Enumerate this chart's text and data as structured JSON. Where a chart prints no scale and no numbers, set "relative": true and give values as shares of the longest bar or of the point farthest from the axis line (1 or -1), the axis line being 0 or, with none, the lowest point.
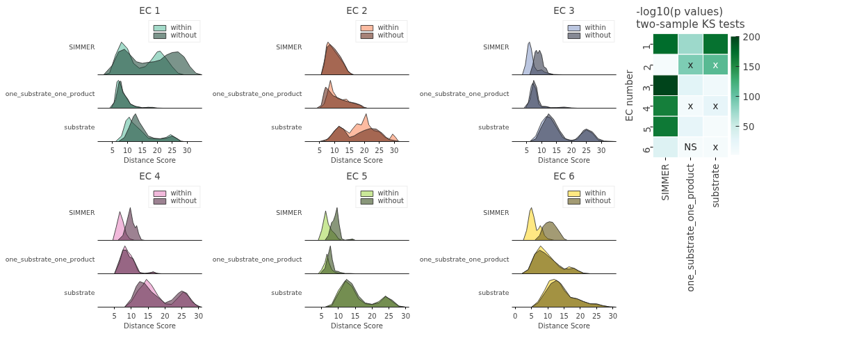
{
  "chart_data": [
    {
      "type": "area",
      "relative": true,
      "title": "EC 1",
      "ylabel": "SIMMER",
      "xlim": [
        0,
        35
      ],
      "xticks": [
        5,
        10,
        15,
        20,
        25,
        30
      ],
      "tick_labels": false,
      "legend": "top right",
      "series": [
        {
          "name": "within",
          "color": "#66c2a5",
          "x": [
            2,
            4,
            6,
            8,
            10,
            12,
            14,
            16,
            18,
            20,
            21,
            23,
            25,
            27,
            29,
            35
          ],
          "values": [
            0,
            0.05,
            0.6,
            1,
            0.8,
            0.35,
            0.2,
            0.25,
            0.45,
            0.7,
            0.72,
            0.5,
            0.25,
            0.05,
            0,
            0
          ]
        },
        {
          "name": "without",
          "color": "#234d3d",
          "x": [
            2,
            5,
            7,
            9,
            11,
            13,
            15,
            17,
            19,
            21,
            23,
            25,
            27,
            29,
            31,
            33,
            35
          ],
          "values": [
            0,
            0.3,
            0.7,
            0.78,
            0.6,
            0.4,
            0.35,
            0.38,
            0.4,
            0.45,
            0.6,
            0.68,
            0.7,
            0.55,
            0.25,
            0.05,
            0
          ]
        }
      ]
    },
    {
      "type": "area",
      "relative": true,
      "ylabel": "one_substrate_one_product",
      "xlim": [
        0,
        35
      ],
      "tick_labels": false,
      "series": [
        {
          "color": "#66c2a5",
          "x": [
            4,
            5.5,
            6.5,
            7,
            7.5,
            8.5,
            9.5,
            11,
            13,
            15,
            17,
            19,
            22,
            35
          ],
          "values": [
            0,
            0.2,
            0.95,
            1,
            0.9,
            0.6,
            0.4,
            0.15,
            0.05,
            0.02,
            0.03,
            0.01,
            0,
            0
          ]
        },
        {
          "color": "#234d3d",
          "x": [
            4.5,
            6,
            7.2,
            7.8,
            8.5,
            10,
            11,
            12.5,
            14,
            15,
            17,
            18.5,
            20,
            35
          ],
          "values": [
            0,
            0.3,
            0.95,
            0.97,
            0.55,
            0.35,
            0.15,
            0.07,
            0.04,
            0.01,
            0.03,
            0.03,
            0,
            0
          ]
        }
      ]
    },
    {
      "type": "area",
      "relative": true,
      "ylabel": "substrate",
      "xlabel": "Distance Score",
      "xlim": [
        0,
        35
      ],
      "xticks": [
        5,
        10,
        15,
        20,
        25,
        30
      ],
      "tick_labels": "x",
      "series": [
        {
          "color": "#66c2a5",
          "x": [
            6,
            8,
            9.5,
            10.6,
            11.5,
            13,
            15,
            17,
            19,
            21,
            23,
            24.5,
            26,
            28,
            35
          ],
          "values": [
            0,
            0.2,
            0.75,
            0.88,
            0.7,
            0.55,
            0.35,
            0.12,
            0.1,
            0.1,
            0.15,
            0.25,
            0.15,
            0,
            0
          ]
        },
        {
          "color": "#234d3d",
          "x": [
            7,
            9,
            10.5,
            12,
            12.7,
            14,
            15.5,
            17,
            19,
            21,
            23,
            25,
            26.5,
            28,
            29,
            35
          ],
          "values": [
            0,
            0.15,
            0.5,
            0.9,
            1,
            0.7,
            0.45,
            0.2,
            0.12,
            0.1,
            0.12,
            0.2,
            0.12,
            0.02,
            0,
            0
          ]
        }
      ]
    },
    {
      "type": "area",
      "relative": true,
      "title": "EC 2",
      "ylabel": "SIMMER",
      "xlim": [
        0,
        35
      ],
      "tick_labels": false,
      "legend": "top right",
      "series": [
        {
          "name": "within",
          "color": "#fc8d62",
          "x": [
            5.5,
            6.5,
            7.3,
            7.8,
            9,
            11,
            13,
            14.5,
            15.5,
            16,
            35
          ],
          "values": [
            0,
            0.3,
            0.9,
            1,
            0.85,
            0.6,
            0.35,
            0.1,
            0.03,
            0,
            0
          ]
        },
        {
          "name": "without",
          "color": "#6a2f1e",
          "x": [
            5.5,
            6.5,
            7.5,
            8.5,
            10,
            12,
            13.5,
            14.5,
            15.5,
            16.5,
            35
          ],
          "values": [
            0,
            0.4,
            0.85,
            0.93,
            0.8,
            0.55,
            0.3,
            0.12,
            0.04,
            0,
            0
          ]
        }
      ]
    },
    {
      "type": "area",
      "relative": true,
      "ylabel": "one_substrate_one_product",
      "xlim": [
        0,
        35
      ],
      "tick_labels": false,
      "series": [
        {
          "color": "#fc8d62",
          "x": [
            5,
            6.5,
            7.5,
            8.6,
            9.5,
            11,
            12.5,
            14,
            15,
            17,
            18.5,
            19.5,
            21,
            35
          ],
          "values": [
            0,
            0.15,
            0.5,
            1,
            0.6,
            0.35,
            0.3,
            0.32,
            0.22,
            0.18,
            0.12,
            0.02,
            0,
            0
          ]
        },
        {
          "color": "#6a2f1e",
          "x": [
            4,
            5.5,
            6.5,
            7,
            8,
            9.5,
            11,
            13,
            15,
            17,
            19,
            20,
            21,
            35
          ],
          "values": [
            0,
            0.1,
            0.6,
            0.76,
            0.65,
            0.45,
            0.38,
            0.28,
            0.22,
            0.16,
            0.1,
            0.03,
            0,
            0
          ]
        }
      ]
    },
    {
      "type": "area",
      "relative": true,
      "ylabel": "substrate",
      "xlabel": "Distance Score",
      "xlim": [
        0,
        35
      ],
      "xticks": [
        5,
        10,
        15,
        20,
        25,
        30
      ],
      "tick_labels": "x",
      "series": [
        {
          "color": "#fc8d62",
          "x": [
            5,
            8,
            10,
            11.5,
            13,
            15,
            16,
            17.5,
            19,
            20.6,
            21.5,
            23,
            25,
            27,
            28.5,
            29.5,
            30.5,
            31.5,
            35
          ],
          "values": [
            0,
            0.1,
            0.4,
            0.55,
            0.45,
            0.3,
            0.45,
            0.64,
            0.6,
            1,
            0.6,
            0.4,
            0.35,
            0.15,
            0.1,
            0.27,
            0.15,
            0,
            0
          ]
        },
        {
          "color": "#6a2f1e",
          "x": [
            5,
            7,
            9,
            11.4,
            13,
            15,
            16.5,
            18,
            20,
            22,
            24,
            26,
            28,
            30,
            32,
            35
          ],
          "values": [
            0,
            0.03,
            0.25,
            0.55,
            0.45,
            0.15,
            0.2,
            0.3,
            0.4,
            0.47,
            0.45,
            0.3,
            0.08,
            0.04,
            0,
            0
          ]
        }
      ]
    },
    {
      "type": "area",
      "relative": true,
      "title": "EC 3",
      "ylabel": "SIMMER",
      "xlim": [
        0,
        35
      ],
      "tick_labels": false,
      "legend": "top right",
      "series": [
        {
          "name": "within",
          "color": "#8da0cb",
          "x": [
            3.5,
            4.5,
            5.5,
            5.9,
            6.5,
            7.5,
            8.5,
            10,
            11,
            12,
            14,
            35
          ],
          "values": [
            0,
            0.3,
            0.95,
            1,
            0.8,
            0.25,
            0.12,
            0.15,
            0.08,
            0.05,
            0,
            0
          ]
        },
        {
          "name": "without",
          "color": "#353b4d",
          "x": [
            6,
            7,
            7.8,
            8.2,
            8.7,
            9.3,
            10,
            10.7,
            11.5,
            12.2,
            14,
            17,
            35
          ],
          "values": [
            0,
            0.3,
            0.7,
            0.75,
            0.65,
            0.75,
            0.6,
            0.25,
            0.2,
            0.05,
            0.01,
            0,
            0
          ]
        }
      ]
    },
    {
      "type": "area",
      "relative": true,
      "ylabel": "one_substrate_one_product",
      "xlim": [
        0,
        35
      ],
      "tick_labels": false,
      "series": [
        {
          "color": "#8da0cb",
          "x": [
            4,
            5.5,
            6.5,
            7,
            8,
            9,
            10,
            11.5,
            13,
            17,
            20,
            35
          ],
          "values": [
            0,
            0.2,
            0.8,
            0.9,
            0.7,
            0.15,
            0.04,
            0.05,
            0.01,
            0.02,
            0,
            0
          ]
        },
        {
          "color": "#353b4d",
          "x": [
            4.5,
            6,
            7.3,
            8.3,
            9,
            10,
            11.5,
            13,
            15,
            17.5,
            20,
            22,
            35
          ],
          "values": [
            0,
            0.3,
            1,
            0.75,
            0.3,
            0.07,
            0.06,
            0.02,
            0.02,
            0.04,
            0.01,
            0,
            0
          ]
        }
      ]
    },
    {
      "type": "area",
      "relative": true,
      "ylabel": "substrate",
      "xlabel": "Distance Score",
      "xlim": [
        0,
        35
      ],
      "xticks": [
        5,
        10,
        15,
        20,
        25,
        30
      ],
      "tick_labels": "x",
      "series": [
        {
          "color": "#8da0cb",
          "x": [
            6,
            8,
            10,
            11.5,
            13,
            15,
            17,
            19,
            21,
            23,
            25,
            27,
            29,
            31,
            35
          ],
          "values": [
            0,
            0.2,
            0.7,
            0.9,
            0.85,
            0.5,
            0.15,
            0.05,
            0.05,
            0.25,
            0.42,
            0.3,
            0.05,
            0,
            0
          ]
        },
        {
          "color": "#353b4d",
          "x": [
            6,
            8,
            10,
            12.3,
            14,
            16,
            18,
            20,
            22,
            24,
            25,
            27,
            29,
            31,
            35
          ],
          "values": [
            0,
            0.1,
            0.55,
            1,
            0.8,
            0.4,
            0.1,
            0.04,
            0.1,
            0.4,
            0.45,
            0.35,
            0.1,
            0.02,
            0
          ]
        }
      ]
    },
    {
      "type": "area",
      "relative": true,
      "title": "EC 4",
      "ylabel": "SIMMER",
      "xlim": [
        0,
        31
      ],
      "tick_labels": false,
      "legend": "top right",
      "series": [
        {
          "name": "within",
          "color": "#e78ac3",
          "x": [
            4.5,
            5.5,
            6.6,
            7.5,
            8.5,
            9.5,
            11,
            31
          ],
          "values": [
            0,
            0.4,
            0.88,
            0.6,
            0.2,
            0.05,
            0,
            0
          ]
        },
        {
          "name": "without",
          "color": "#5b2e4a",
          "x": [
            6,
            7.5,
            8.5,
            9.7,
            10.5,
            11.2,
            11.6,
            12.2,
            13,
            14,
            31
          ],
          "values": [
            0,
            0.15,
            0.5,
            1,
            0.55,
            0.38,
            0.45,
            0.2,
            0.02,
            0,
            0
          ]
        }
      ]
    },
    {
      "type": "area",
      "relative": true,
      "ylabel": "one_substrate_one_product",
      "xlim": [
        0,
        31
      ],
      "tick_labels": false,
      "series": [
        {
          "color": "#e78ac3",
          "x": [
            5,
            6.5,
            7.5,
            8.1,
            9,
            10,
            11,
            12,
            13,
            15.5,
            16.5,
            17.5,
            19,
            31
          ],
          "values": [
            0,
            0.4,
            0.85,
            1,
            0.8,
            0.65,
            0.4,
            0.1,
            0.01,
            0.02,
            0.07,
            0.02,
            0,
            0
          ]
        },
        {
          "color": "#5b2e4a",
          "x": [
            5,
            6.5,
            7.5,
            8.5,
            9.5,
            10.5,
            11.5,
            12.5,
            14,
            16.5,
            18,
            31
          ],
          "values": [
            0,
            0.5,
            0.85,
            0.85,
            0.6,
            0.55,
            0.3,
            0.05,
            0.01,
            0.06,
            0,
            0
          ]
        }
      ]
    },
    {
      "type": "area",
      "relative": true,
      "ylabel": "substrate",
      "xlabel": "Distance Score",
      "xlim": [
        0,
        31
      ],
      "xticks": [
        5,
        10,
        15,
        20,
        25,
        30
      ],
      "tick_labels": "x",
      "series": [
        {
          "color": "#e78ac3",
          "x": [
            8,
            10,
            12,
            13.5,
            14.5,
            16,
            18,
            20,
            22,
            24,
            25.5,
            27,
            29,
            30.5,
            31
          ],
          "values": [
            0,
            0.2,
            0.6,
            0.8,
            1,
            0.8,
            0.4,
            0.12,
            0.1,
            0.35,
            0.55,
            0.4,
            0.1,
            0.01,
            0
          ]
        },
        {
          "color": "#5b2e4a",
          "x": [
            8,
            10,
            11.5,
            12.5,
            14,
            16,
            18,
            20,
            22,
            24,
            25,
            26.5,
            28,
            30,
            31
          ],
          "values": [
            0,
            0.3,
            0.75,
            0.92,
            0.85,
            0.55,
            0.35,
            0.15,
            0.25,
            0.5,
            0.58,
            0.5,
            0.2,
            0.02,
            0
          ]
        }
      ]
    },
    {
      "type": "area",
      "relative": true,
      "title": "EC 5",
      "ylabel": "SIMMER",
      "xlim": [
        0,
        31
      ],
      "tick_labels": false,
      "legend": "top right",
      "series": [
        {
          "name": "within",
          "color": "#a6d854",
          "x": [
            4,
            5,
            6.2,
            7,
            8,
            9,
            10,
            11,
            14,
            15,
            31
          ],
          "values": [
            0,
            0.3,
            0.9,
            0.5,
            0.3,
            0.2,
            0.05,
            0,
            0.02,
            0,
            0
          ]
        },
        {
          "name": "without",
          "color": "#3b5121",
          "x": [
            6,
            7,
            8,
            8.5,
            9,
            9.6,
            10.2,
            11,
            12,
            14.2,
            15,
            31
          ],
          "values": [
            0,
            0.15,
            0.55,
            0.6,
            0.75,
            1,
            0.5,
            0.05,
            0,
            0.04,
            0,
            0
          ]
        }
      ]
    },
    {
      "type": "area",
      "relative": true,
      "ylabel": "one_substrate_one_product",
      "xlim": [
        0,
        31
      ],
      "tick_labels": false,
      "series": [
        {
          "color": "#a6d854",
          "x": [
            4,
            5,
            6,
            6.6,
            7.2,
            8,
            9,
            10,
            12,
            31
          ],
          "values": [
            0,
            0.15,
            0.4,
            0.71,
            0.4,
            0.15,
            0.05,
            0.02,
            0,
            0
          ]
        },
        {
          "color": "#3b5121",
          "x": [
            4.5,
            6,
            7,
            7.6,
            8.2,
            9,
            10,
            10.5,
            12,
            13.5,
            15,
            31
          ],
          "values": [
            0,
            0.2,
            0.7,
            1,
            0.5,
            0.1,
            0.08,
            0.05,
            0.01,
            0.01,
            0,
            0
          ]
        }
      ]
    },
    {
      "type": "area",
      "relative": true,
      "ylabel": "substrate",
      "xlabel": "Distance Score",
      "xlim": [
        0,
        31
      ],
      "xticks": [
        5,
        10,
        15,
        20,
        25,
        30
      ],
      "tick_labels": "x",
      "series": [
        {
          "color": "#a6d854",
          "x": [
            6,
            8,
            10,
            12,
            14,
            16,
            18,
            20,
            22,
            24,
            26,
            28,
            30,
            31
          ],
          "values": [
            0,
            0.1,
            0.6,
            0.95,
            0.75,
            0.3,
            0.12,
            0.1,
            0.2,
            0.4,
            0.2,
            0.03,
            0,
            0
          ]
        },
        {
          "color": "#3b5121",
          "x": [
            6,
            8,
            10,
            12.4,
            14,
            16,
            18,
            20,
            22,
            24,
            26,
            28,
            30,
            31
          ],
          "values": [
            0,
            0.05,
            0.5,
            1,
            0.85,
            0.4,
            0.15,
            0.1,
            0.15,
            0.38,
            0.25,
            0.04,
            0,
            0
          ]
        }
      ]
    },
    {
      "type": "area",
      "relative": true,
      "title": "EC 6",
      "ylabel": "SIMMER",
      "xlim": [
        -1,
        31
      ],
      "tick_labels": false,
      "legend": "top right",
      "series": [
        {
          "name": "within",
          "color": "#ffd92f",
          "x": [
            2.5,
            3.5,
            4.5,
            5,
            5.8,
            6.6,
            7.2,
            7.7,
            8.3,
            9,
            10,
            12,
            31
          ],
          "values": [
            0,
            0.3,
            0.9,
            1,
            0.7,
            0.3,
            0.35,
            0.45,
            0.35,
            0.15,
            0.05,
            0,
            0
          ]
        },
        {
          "name": "without",
          "color": "#665818",
          "x": [
            6,
            7.5,
            8.5,
            9.5,
            10.5,
            11.5,
            12.5,
            14,
            15,
            16,
            31
          ],
          "values": [
            0,
            0.15,
            0.42,
            0.53,
            0.57,
            0.55,
            0.42,
            0.2,
            0.05,
            0,
            0
          ]
        }
      ]
    },
    {
      "type": "area",
      "relative": true,
      "ylabel": "one_substrate_one_product",
      "xlim": [
        -1,
        31
      ],
      "tick_labels": false,
      "series": [
        {
          "color": "#ffd92f",
          "x": [
            2,
            4,
            6,
            7.8,
            9,
            10.5,
            12,
            13.5,
            15,
            16.5,
            18,
            19.5,
            21,
            23,
            31
          ],
          "values": [
            0,
            0.15,
            0.7,
            1,
            0.85,
            0.65,
            0.45,
            0.25,
            0.15,
            0.25,
            0.2,
            0.1,
            0.02,
            0,
            0
          ]
        },
        {
          "color": "#665818",
          "x": [
            2,
            4,
            6,
            7.5,
            9,
            10.5,
            12,
            13.5,
            15,
            16.5,
            18,
            19.5,
            21,
            23,
            31
          ],
          "values": [
            0,
            0.15,
            0.7,
            0.85,
            0.75,
            0.6,
            0.45,
            0.3,
            0.18,
            0.17,
            0.2,
            0.1,
            0.02,
            0,
            0
          ]
        }
      ]
    },
    {
      "type": "area",
      "relative": true,
      "ylabel": "substrate",
      "xlabel": "Distance Score",
      "xlim": [
        -1,
        31
      ],
      "xticks": [
        0,
        5,
        10,
        15,
        20,
        25,
        30
      ],
      "tick_labels": "x",
      "series": [
        {
          "color": "#ffd92f",
          "x": [
            5,
            7,
            9,
            10.5,
            12,
            13.5,
            15,
            17,
            19,
            21,
            23,
            25,
            27,
            29,
            31
          ],
          "values": [
            0,
            0.2,
            0.6,
            0.95,
            1,
            0.9,
            0.6,
            0.35,
            0.3,
            0.2,
            0.12,
            0.1,
            0.05,
            0.01,
            0
          ]
        },
        {
          "color": "#665818",
          "x": [
            5,
            7,
            9,
            11,
            12.7,
            14,
            15.5,
            17,
            19,
            21,
            23,
            25,
            27,
            29,
            31
          ],
          "values": [
            0,
            0.15,
            0.5,
            0.85,
            0.96,
            0.85,
            0.6,
            0.35,
            0.3,
            0.2,
            0.12,
            0.12,
            0.05,
            0.01,
            0
          ]
        }
      ]
    },
    {
      "type": "heatmap",
      "title": "-log10(p values)\ntwo-sample KS tests",
      "ylabel": "EC number",
      "categories": [
        "SIMMER",
        "one_substrate_one_product",
        "substrate"
      ],
      "y_categories": [
        "1",
        "2",
        "3",
        "4",
        "5",
        "6"
      ],
      "cells": [
        [
          175,
          75,
          170
        ],
        [
          5,
          90,
          110
        ],
        [
          200,
          30,
          12
        ],
        [
          160,
          8,
          25
        ],
        [
          165,
          25,
          5
        ],
        [
          35,
          5,
          5
        ]
      ],
      "cell_labels": [
        [
          null,
          null,
          null
        ],
        [
          null,
          "x",
          "x"
        ],
        [
          null,
          null,
          null
        ],
        [
          null,
          "x",
          "x"
        ],
        [
          null,
          null,
          null
        ],
        [
          null,
          "NS",
          "x"
        ]
      ],
      "clim": [
        3,
        200
      ],
      "cticks": [
        50,
        100,
        150,
        200
      ]
    }
  ]
}
